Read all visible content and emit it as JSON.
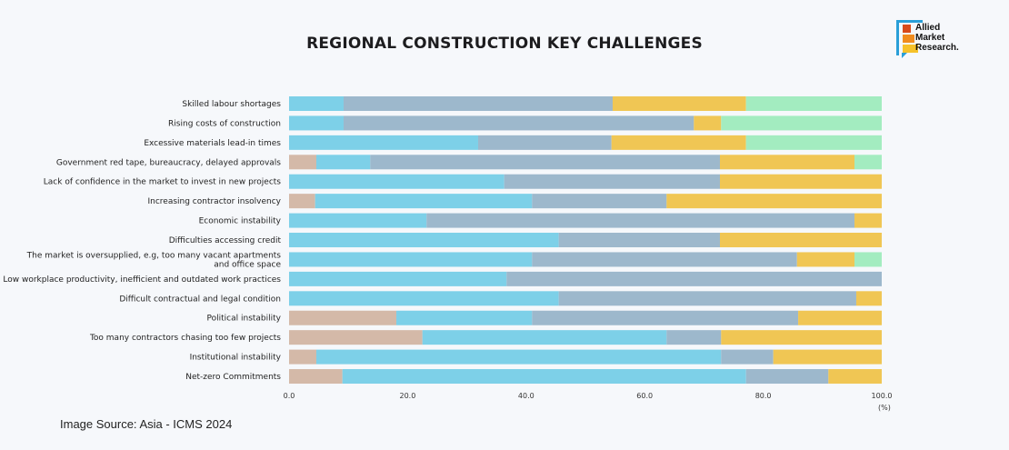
{
  "title": "REGIONAL CONSTRUCTION KEY CHALLENGES",
  "source": "Image Source: Asia - ICMS 2024",
  "logo": {
    "line1": "Allied",
    "line2": "Market",
    "line3": "Research."
  },
  "chart_data": {
    "type": "bar",
    "orientation": "horizontal",
    "stacked": true,
    "title": "REGIONAL CONSTRUCTION KEY CHALLENGES",
    "xlabel": "(%)",
    "ylabel": "",
    "xlim": [
      0,
      100
    ],
    "xticks": [
      "0.0",
      "20.0",
      "40.0",
      "60.0",
      "80.0",
      "100.0"
    ],
    "grid": false,
    "legend": "none",
    "series_colors": [
      "#d4b9a8",
      "#7dd0e8",
      "#9db8cc",
      "#f0c654",
      "#a3ecc0"
    ],
    "categories": [
      [
        "Skilled labour shortages"
      ],
      [
        "Rising costs of construction"
      ],
      [
        "Excessive materials lead-in times"
      ],
      [
        "Government red tape, bureaucracy, delayed approvals"
      ],
      [
        "Lack of confidence in the market to invest in new projects"
      ],
      [
        "Increasing contractor insolvency"
      ],
      [
        "Economic instability"
      ],
      [
        "Difficulties accessing credit"
      ],
      [
        "The market is oversupplied, e.g, too many vacant apartments",
        "and office space"
      ],
      [
        "Low workplace productivity, inefficient and outdated work practices"
      ],
      [
        "Difficult contractual and legal condition"
      ],
      [
        "Political instability"
      ],
      [
        "Too many contractors chasing too few projects"
      ],
      [
        "Institutional instability"
      ],
      [
        "Net-zero Commitments"
      ]
    ],
    "series": [
      {
        "values": [
          0,
          0,
          0,
          4.6,
          0,
          4.4,
          0,
          0,
          0,
          0,
          0,
          18.1,
          22.5,
          4.6,
          9.0
        ]
      },
      {
        "values": [
          9.2,
          9.2,
          31.9,
          9.1,
          36.3,
          36.6,
          23.2,
          45.5,
          41.0,
          36.7,
          45.5,
          22.9,
          41.2,
          68.3,
          68.1
        ]
      },
      {
        "values": [
          45.4,
          59.1,
          22.5,
          59.0,
          36.4,
          22.7,
          72.2,
          27.2,
          44.7,
          63.3,
          50.2,
          44.9,
          9.2,
          8.8,
          13.9
        ]
      },
      {
        "values": [
          22.5,
          4.6,
          22.7,
          22.7,
          27.3,
          36.3,
          4.6,
          27.3,
          9.7,
          0,
          4.3,
          14.1,
          27.1,
          18.3,
          9.0
        ]
      },
      {
        "values": [
          22.9,
          27.1,
          22.9,
          4.6,
          0,
          0,
          0,
          0,
          4.6,
          0,
          0,
          0,
          0,
          0,
          0
        ]
      }
    ]
  }
}
